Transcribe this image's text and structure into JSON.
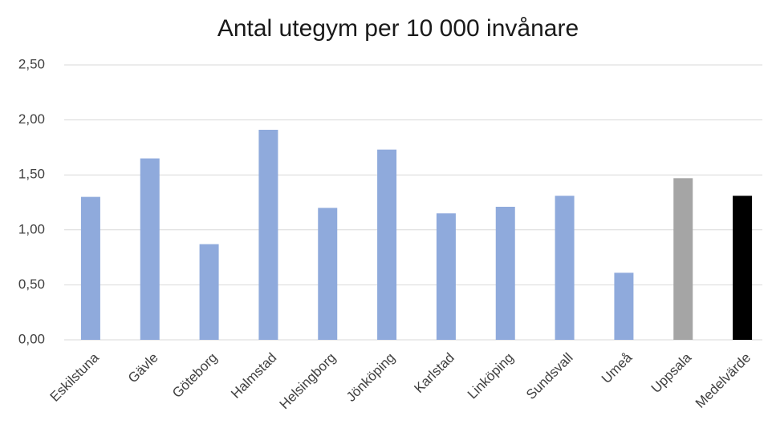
{
  "chart_data": {
    "type": "bar",
    "title": "Antal utegym per 10 000 invånare",
    "categories": [
      "Eskilstuna",
      "Gävle",
      "Göteborg",
      "Halmstad",
      "Helsingborg",
      "Jönköping",
      "Karlstad",
      "Linköping",
      "Sundsvall",
      "Umeå",
      "Uppsala",
      "Medelvärde"
    ],
    "values": [
      1.3,
      1.65,
      0.87,
      1.91,
      1.2,
      1.73,
      1.15,
      1.21,
      1.31,
      0.61,
      1.47,
      1.31
    ],
    "colors": [
      "#8faadc",
      "#8faadc",
      "#8faadc",
      "#8faadc",
      "#8faadc",
      "#8faadc",
      "#8faadc",
      "#8faadc",
      "#8faadc",
      "#8faadc",
      "#a5a5a5",
      "#000000"
    ],
    "ylim": [
      0,
      2.5
    ],
    "yticks": [
      {
        "value": 0,
        "label": "0,00"
      },
      {
        "value": 0.5,
        "label": "0,50"
      },
      {
        "value": 1,
        "label": "1,00"
      },
      {
        "value": 1.5,
        "label": "1,50"
      },
      {
        "value": 2,
        "label": "2,00"
      },
      {
        "value": 2.5,
        "label": "2,50"
      }
    ],
    "grid": true
  }
}
